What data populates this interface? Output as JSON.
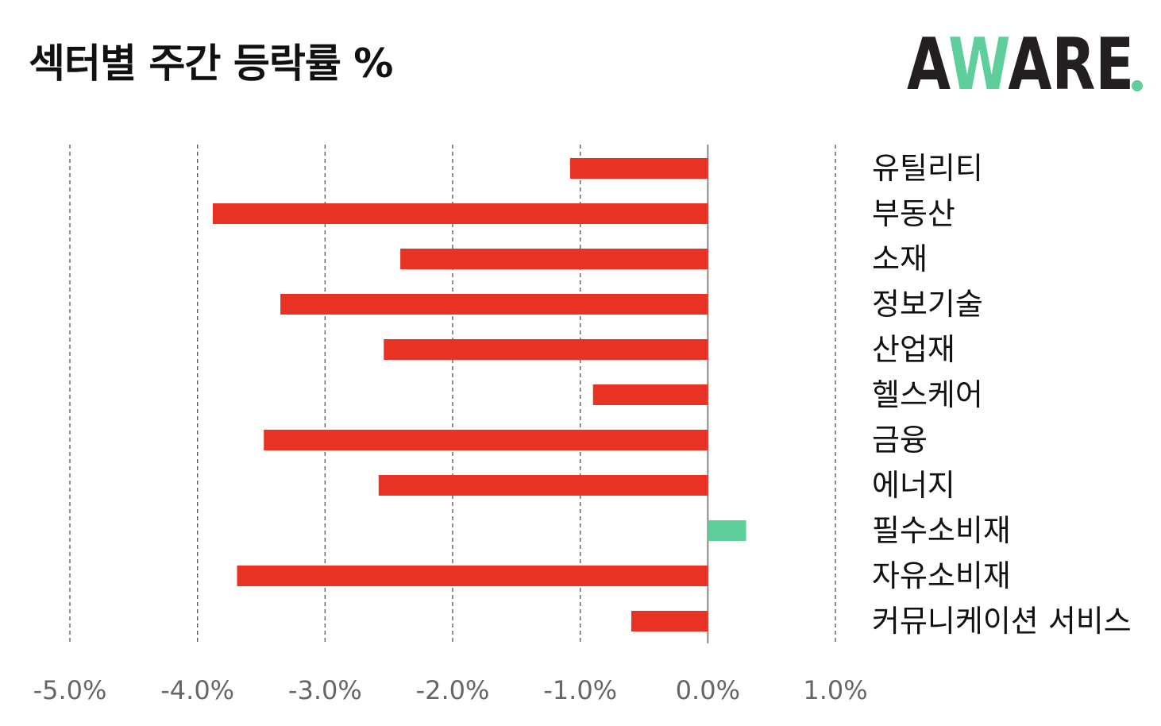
{
  "title": "섹터별 주간 등락률 %",
  "logo": {
    "text_dark_1": "A",
    "text_green": "W",
    "text_dark_2": "ARE",
    "dot_color": "#5ecf9b"
  },
  "chart_data": {
    "type": "bar",
    "orientation": "horizontal",
    "title": "섹터별 주간 등락률 %",
    "xlabel": "",
    "ylabel": "",
    "categories": [
      "유틸리티",
      "부동산",
      "소재",
      "정보기술",
      "산업재",
      "헬스케어",
      "금융",
      "에너지",
      "필수소비재",
      "자유소비재",
      "커뮤니케이션 서비스"
    ],
    "values": [
      -1.08,
      -3.88,
      -2.41,
      -3.35,
      -2.54,
      -0.9,
      -3.48,
      -2.58,
      0.3,
      -3.69,
      -0.6
    ],
    "xlim": [
      -5.0,
      1.0
    ],
    "xticks": [
      -5.0,
      -4.0,
      -3.0,
      -2.0,
      -1.0,
      0.0,
      1.0
    ],
    "xtick_labels": [
      "-5.0%",
      "-4.0%",
      "-3.0%",
      "-2.0%",
      "-1.0%",
      "0.0%",
      "1.0%"
    ],
    "grid": "vertical-dashed",
    "colors": {
      "negative": "#e83324",
      "positive": "#5ecf9b",
      "grid": "#555555",
      "zero_line": "#888888"
    }
  }
}
